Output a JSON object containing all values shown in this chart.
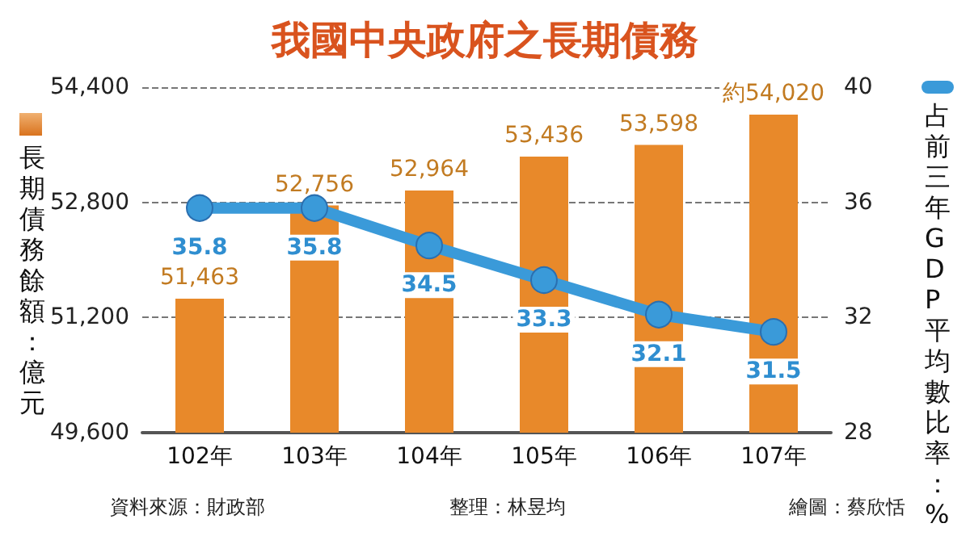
{
  "chart_data": {
    "type": "bar",
    "title": "我國中央政府之長期債務",
    "ylabel": "長期債務餘額：億元",
    "y2label": "占前三年GDP平均數比率：%",
    "categories": [
      "102年",
      "103年",
      "104年",
      "105年",
      "106年",
      "107年"
    ],
    "series": [
      {
        "color": "#e8892a",
        "values": [
          51463,
          52756,
          52964,
          53436,
          53598,
          54020
        ],
        "value_labels": [
          "51,463",
          "52,756",
          "52,964",
          "53,436",
          "53,598",
          "約54,020"
        ]
      },
      {
        "type": "line",
        "axis": "y2",
        "color": "#3a9ad9",
        "values": [
          35.8,
          35.8,
          34.5,
          33.3,
          32.1,
          31.5
        ],
        "value_labels": [
          "35.8",
          "35.8",
          "34.5",
          "33.3",
          "32.1",
          "31.5"
        ]
      }
    ],
    "ylim": [
      49600,
      54400
    ],
    "yticks": [
      {
        "value": 49600,
        "label": "49,600"
      },
      {
        "value": 51200,
        "label": "51,200"
      },
      {
        "value": 52800,
        "label": "52,800"
      },
      {
        "value": 54400,
        "label": "54,400"
      }
    ],
    "y2lim": [
      28,
      40
    ],
    "y2ticks": [
      28,
      32,
      36,
      40
    ],
    "grid": "y",
    "marker": "circle",
    "annotations": [
      "資料來源：財政部",
      "整理：林昱均",
      "繪圖：蔡欣恬"
    ]
  }
}
